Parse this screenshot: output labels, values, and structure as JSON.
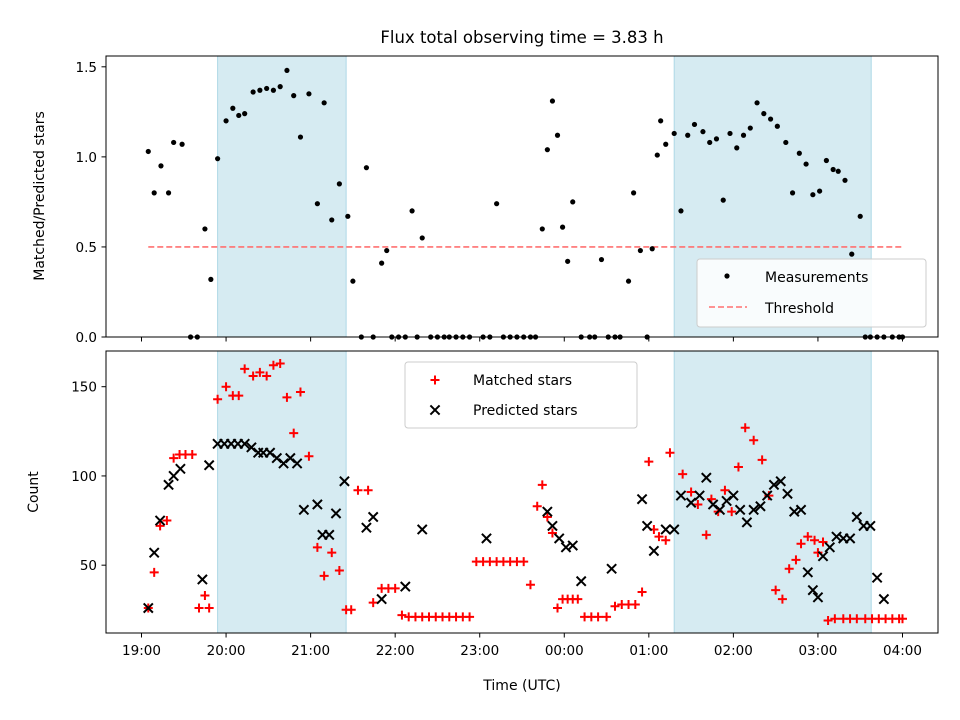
{
  "chart_data": [
    {
      "type": "scatter",
      "title": "Flux total observing time = 3.83 h",
      "xlabel": "",
      "ylabel": "Matched/Predicted stars",
      "xlim": [
        -0.42,
        9.42
      ],
      "ylim": [
        0,
        1.56
      ],
      "xticks": [
        0,
        1,
        2,
        3,
        4,
        5,
        6,
        7,
        8,
        9
      ],
      "yticks": [
        0,
        0.5,
        1.0,
        1.5
      ],
      "ytick_labels": [
        "0.0",
        "0.5",
        "1.0",
        "1.5"
      ],
      "shaded_regions": [
        [
          0.9,
          2.42
        ],
        [
          6.3,
          8.63
        ]
      ],
      "threshold": {
        "name": "Threshold",
        "value": 0.5,
        "x_range": [
          0.08,
          9.0
        ],
        "color": "#ff7070"
      },
      "legend": {
        "position": "lower right",
        "entries": [
          "Measurements",
          "Threshold"
        ]
      },
      "series": [
        {
          "name": "Measurements",
          "color": "#000000",
          "marker": "dot",
          "x": [
            0.08,
            0.15,
            0.23,
            0.32,
            0.38,
            0.48,
            0.58,
            0.66,
            0.75,
            0.82,
            0.9,
            1.0,
            1.08,
            1.15,
            1.22,
            1.32,
            1.4,
            1.48,
            1.56,
            1.64,
            1.72,
            1.8,
            1.88,
            1.98,
            2.08,
            2.16,
            2.25,
            2.34,
            2.44,
            2.5,
            2.6,
            2.66,
            2.74,
            2.84,
            2.9,
            2.96,
            3.04,
            3.12,
            3.2,
            3.26,
            3.32,
            3.42,
            3.5,
            3.58,
            3.64,
            3.72,
            3.8,
            3.88,
            4.04,
            4.12,
            4.2,
            4.28,
            4.36,
            4.44,
            4.52,
            4.6,
            4.66,
            4.74,
            4.8,
            4.86,
            4.92,
            4.98,
            5.04,
            5.1,
            5.2,
            5.3,
            5.36,
            5.44,
            5.52,
            5.6,
            5.66,
            5.76,
            5.82,
            5.9,
            5.98,
            6.04,
            6.1,
            6.14,
            6.2,
            6.3,
            6.38,
            6.46,
            6.54,
            6.64,
            6.72,
            6.8,
            6.88,
            6.96,
            7.04,
            7.12,
            7.2,
            7.28,
            7.36,
            7.44,
            7.52,
            7.62,
            7.7,
            7.78,
            7.86,
            7.94,
            8.02,
            8.1,
            8.18,
            8.24,
            8.32,
            8.4,
            8.5,
            8.56,
            8.62,
            8.7,
            8.78,
            8.88,
            8.96,
            9.0
          ],
          "y": [
            1.03,
            0.8,
            0.95,
            0.8,
            1.08,
            1.07,
            0.0,
            0.0,
            0.6,
            0.32,
            0.99,
            1.2,
            1.27,
            1.23,
            1.24,
            1.36,
            1.37,
            1.38,
            1.37,
            1.39,
            1.48,
            1.34,
            1.11,
            1.35,
            0.74,
            1.3,
            0.65,
            0.85,
            0.67,
            0.31,
            0.0,
            0.94,
            0.0,
            0.41,
            0.48,
            0.0,
            0.0,
            0.0,
            0.7,
            0.0,
            0.55,
            0.0,
            0.0,
            0.0,
            0.0,
            0.0,
            0.0,
            0.0,
            0.0,
            0.0,
            0.74,
            0.0,
            0.0,
            0.0,
            0.0,
            0.0,
            0.0,
            0.6,
            1.04,
            1.31,
            1.12,
            0.61,
            0.42,
            0.75,
            0.0,
            0.0,
            0.0,
            0.43,
            0.0,
            0.0,
            0.0,
            0.31,
            0.8,
            0.48,
            0.0,
            0.49,
            1.01,
            1.2,
            1.07,
            1.13,
            0.7,
            1.12,
            1.18,
            1.14,
            1.08,
            1.1,
            0.76,
            1.13,
            1.05,
            1.12,
            1.16,
            1.3,
            1.24,
            1.21,
            1.17,
            1.08,
            0.8,
            1.02,
            0.96,
            0.79,
            0.81,
            0.98,
            0.93,
            0.92,
            0.87,
            0.46,
            0.67,
            0.0,
            0.0,
            0.0,
            0.0,
            0.0,
            0.0,
            0.0
          ]
        }
      ]
    },
    {
      "type": "scatter",
      "title": "",
      "xlabel": "Time (UTC)",
      "ylabel": "Count",
      "xlim": [
        -0.42,
        9.42
      ],
      "ylim": [
        12,
        170
      ],
      "xticks": [
        0,
        1,
        2,
        3,
        4,
        5,
        6,
        7,
        8,
        9
      ],
      "xtick_labels": [
        "19:00",
        "20:00",
        "21:00",
        "22:00",
        "23:00",
        "00:00",
        "01:00",
        "02:00",
        "03:00",
        "04:00"
      ],
      "yticks": [
        50,
        100,
        150
      ],
      "ytick_labels": [
        "50",
        "100",
        "150"
      ],
      "shaded_regions": [
        [
          0.9,
          2.42
        ],
        [
          6.3,
          8.63
        ]
      ],
      "legend": {
        "position": "upper center",
        "entries": [
          "Matched stars",
          "Predicted stars"
        ]
      },
      "series": [
        {
          "name": "Matched stars",
          "color": "#ff0000",
          "marker": "plus",
          "x": [
            0.08,
            0.15,
            0.22,
            0.3,
            0.38,
            0.45,
            0.52,
            0.6,
            0.68,
            0.75,
            0.8,
            0.9,
            1.0,
            1.08,
            1.15,
            1.22,
            1.32,
            1.4,
            1.48,
            1.56,
            1.64,
            1.72,
            1.8,
            1.88,
            1.98,
            2.08,
            2.16,
            2.25,
            2.34,
            2.42,
            2.48,
            2.56,
            2.68,
            2.74,
            2.84,
            2.92,
            3.0,
            3.08,
            3.16,
            3.24,
            3.32,
            3.4,
            3.48,
            3.56,
            3.64,
            3.72,
            3.8,
            3.88,
            3.96,
            4.04,
            4.12,
            4.2,
            4.28,
            4.36,
            4.44,
            4.52,
            4.6,
            4.68,
            4.74,
            4.8,
            4.86,
            4.92,
            4.98,
            5.04,
            5.1,
            5.16,
            5.24,
            5.32,
            5.4,
            5.5,
            5.6,
            5.68,
            5.76,
            5.84,
            5.92,
            6.0,
            6.06,
            6.12,
            6.2,
            6.25,
            6.4,
            6.5,
            6.58,
            6.68,
            6.74,
            6.82,
            6.9,
            6.98,
            7.06,
            7.14,
            7.24,
            7.34,
            7.42,
            7.5,
            7.58,
            7.66,
            7.74,
            7.8,
            7.88,
            7.96,
            8.0,
            8.06,
            8.12,
            8.2,
            8.3,
            8.38,
            8.46,
            8.56,
            8.64,
            8.72,
            8.8,
            8.88,
            8.96,
            9.0
          ],
          "y": [
            26,
            46,
            72,
            75,
            110,
            112,
            112,
            112,
            26,
            33,
            26,
            143,
            150,
            145,
            145,
            160,
            156,
            158,
            156,
            162,
            163,
            144,
            124,
            147,
            111,
            60,
            44,
            57,
            47,
            25,
            25,
            92,
            92,
            29,
            37,
            37,
            37,
            22,
            21,
            21,
            21,
            21,
            21,
            21,
            21,
            21,
            21,
            21,
            52,
            52,
            52,
            52,
            52,
            52,
            52,
            52,
            39,
            83,
            95,
            77,
            68,
            26,
            31,
            31,
            31,
            31,
            21,
            21,
            21,
            21,
            27,
            28,
            28,
            28,
            35,
            108,
            70,
            66,
            64,
            113,
            101,
            91,
            84,
            67,
            87,
            80,
            92,
            80,
            105,
            127,
            120,
            109,
            89,
            36,
            31,
            48,
            53,
            62,
            66,
            64,
            57,
            63,
            19,
            20,
            20,
            20,
            20,
            20,
            20,
            20,
            20,
            20,
            20,
            20
          ],
          "y_note": "approximate"
        },
        {
          "name": "Predicted stars",
          "color": "#000000",
          "marker": "x",
          "x": [
            0.08,
            0.15,
            0.22,
            0.32,
            0.38,
            0.46,
            0.72,
            0.8,
            0.9,
            0.98,
            1.06,
            1.14,
            1.22,
            1.3,
            1.38,
            1.44,
            1.52,
            1.6,
            1.68,
            1.76,
            1.84,
            1.92,
            2.08,
            2.14,
            2.22,
            2.3,
            2.4,
            2.66,
            2.74,
            2.84,
            3.12,
            3.32,
            4.08,
            4.8,
            4.86,
            4.94,
            5.02,
            5.1,
            5.2,
            5.56,
            5.92,
            5.98,
            6.06,
            6.2,
            6.3,
            6.38,
            6.5,
            6.6,
            6.68,
            6.76,
            6.84,
            6.92,
            7.0,
            7.08,
            7.16,
            7.24,
            7.32,
            7.4,
            7.48,
            7.56,
            7.64,
            7.72,
            7.8,
            7.88,
            7.94,
            8.0,
            8.06,
            8.14,
            8.22,
            8.3,
            8.38,
            8.46,
            8.54,
            8.62,
            8.7,
            8.78
          ],
          "y": [
            26,
            57,
            75,
            95,
            100,
            104,
            42,
            106,
            118,
            118,
            118,
            118,
            118,
            116,
            113,
            113,
            113,
            110,
            107,
            110,
            107,
            81,
            84,
            67,
            67,
            79,
            97,
            71,
            77,
            31,
            38,
            70,
            65,
            80,
            72,
            65,
            60,
            61,
            41,
            48,
            87,
            72,
            58,
            70,
            70,
            89,
            85,
            89,
            99,
            84,
            81,
            86,
            89,
            81,
            74,
            81,
            83,
            89,
            95,
            97,
            90,
            80,
            81,
            46,
            36,
            32,
            55,
            60,
            66,
            65,
            65,
            77,
            72,
            72,
            43,
            31
          ]
        }
      ]
    }
  ]
}
